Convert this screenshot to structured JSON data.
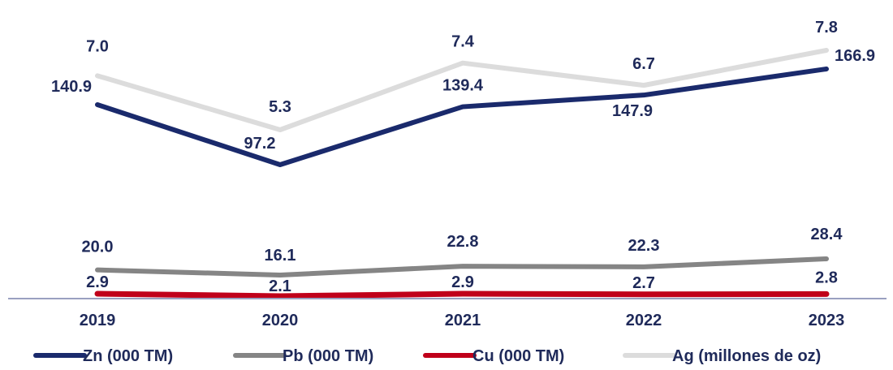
{
  "chart_data": {
    "type": "line",
    "title": "",
    "categories": [
      "2019",
      "2020",
      "2021",
      "2022",
      "2023"
    ],
    "series": [
      {
        "key": "zn",
        "name": "Zn (000 TM)",
        "color": "#1a2a6c",
        "values": [
          140.9,
          97.2,
          139.4,
          147.9,
          166.9
        ],
        "labels": [
          "140.9",
          "97.2",
          "139.4",
          "147.9",
          "166.9"
        ]
      },
      {
        "key": "ag",
        "name": "Ag (millones de oz)",
        "color": "#dcdcdc",
        "values": [
          7.0,
          5.3,
          7.4,
          6.7,
          7.8
        ],
        "labels": [
          "7.0",
          "5.3",
          "7.4",
          "6.7",
          "7.8"
        ]
      },
      {
        "key": "pb",
        "name": "Pb (000 TM)",
        "color": "#858585",
        "values": [
          20.0,
          16.1,
          22.8,
          22.3,
          28.4
        ],
        "labels": [
          "20.0",
          "16.1",
          "22.8",
          "22.3",
          "28.4"
        ]
      },
      {
        "key": "cu",
        "name": "Cu (000 TM)",
        "color": "#c0001a",
        "values": [
          2.9,
          2.1,
          2.9,
          2.7,
          2.8
        ],
        "labels": [
          "2.9",
          "2.1",
          "2.9",
          "2.7",
          "2.8"
        ]
      }
    ],
    "legend": {
      "position": "bottom",
      "order": [
        "zn",
        "pb",
        "cu",
        "ag"
      ]
    },
    "axis": {
      "color": "#9aa0c0",
      "show_y_axis": false,
      "grid": false
    }
  }
}
